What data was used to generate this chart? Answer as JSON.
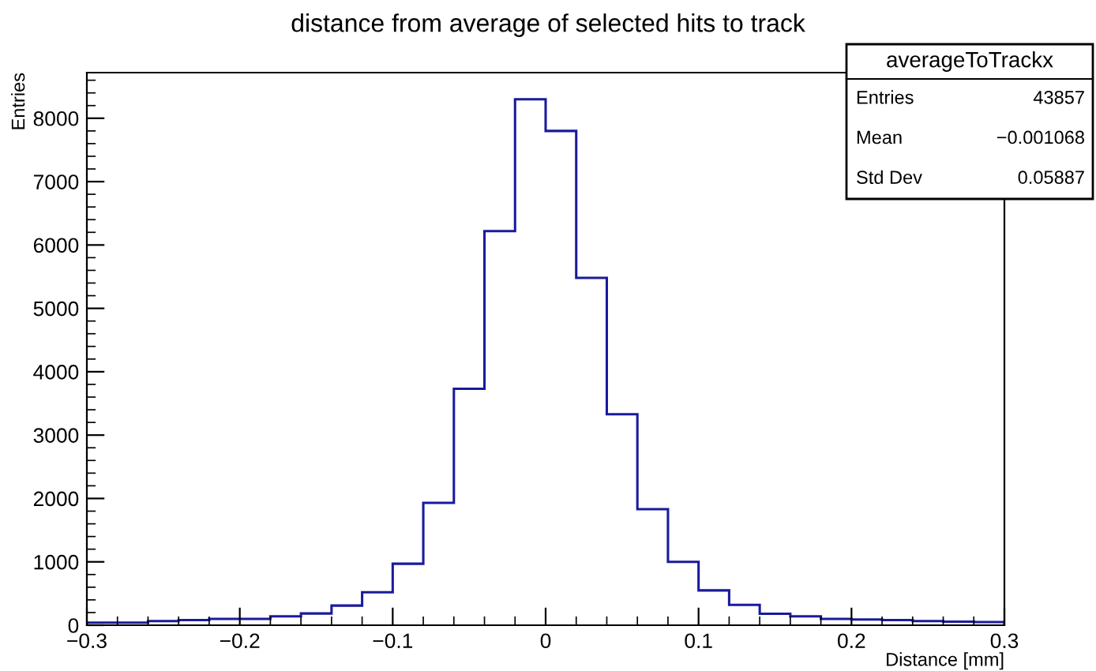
{
  "chart_data": {
    "type": "histogram",
    "title": "distance from average of selected hits to track",
    "xlabel": "Distance [mm]",
    "ylabel": "Entries",
    "bins": [
      -0.3,
      -0.28,
      -0.26,
      -0.24,
      -0.22,
      -0.2,
      -0.18,
      -0.16,
      -0.14,
      -0.12,
      -0.1,
      -0.08,
      -0.06,
      -0.04,
      -0.02,
      0,
      0.02,
      0.04,
      0.06,
      0.08,
      0.1,
      0.12,
      0.14,
      0.16,
      0.18,
      0.2,
      0.22,
      0.24,
      0.26,
      0.28,
      0.3
    ],
    "values": [
      40,
      40,
      65,
      80,
      100,
      100,
      140,
      185,
      310,
      520,
      970,
      1930,
      3730,
      6220,
      8300,
      7800,
      5480,
      3330,
      1830,
      1000,
      550,
      320,
      180,
      140,
      100,
      90,
      80,
      65,
      55,
      50
    ],
    "color": "#1a1a9c",
    "xlim": [
      -0.3,
      0.3
    ],
    "xticks": [
      {
        "value": -0.3,
        "label": "−0.3"
      },
      {
        "value": -0.2,
        "label": "−0.2"
      },
      {
        "value": -0.1,
        "label": "−0.1"
      },
      0,
      0.1,
      0.2,
      0.3
    ],
    "ylim": [
      0,
      8720
    ],
    "yticks": [
      0,
      1000,
      2000,
      3000,
      4000,
      5000,
      6000,
      7000,
      8000
    ],
    "grid": false,
    "legend": false,
    "annotations": [
      "averageToTrackx",
      "Entries",
      "43857",
      "Mean",
      "−0.001068",
      "Std Dev",
      "0.05887"
    ]
  }
}
